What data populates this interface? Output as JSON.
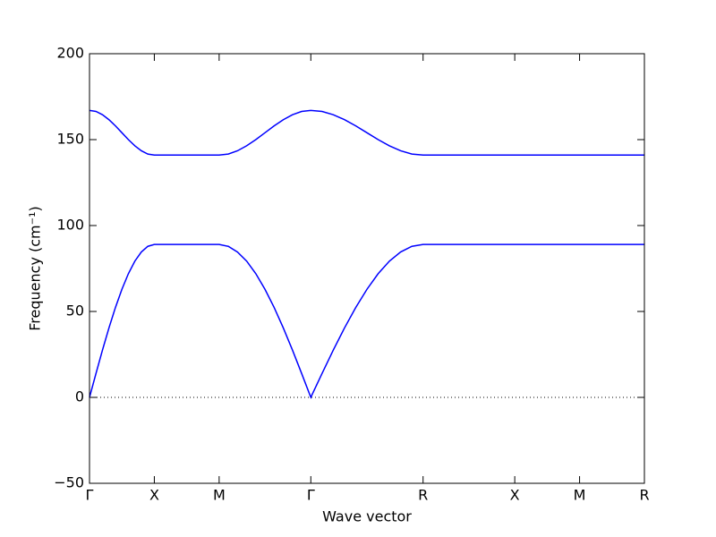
{
  "chart_data": {
    "type": "line",
    "xlabel": "Wave vector",
    "ylabel": "Frequency (cm⁻¹)",
    "x": [
      0,
      0.05,
      0.1,
      0.15,
      0.2,
      0.25,
      0.3,
      0.35,
      0.4,
      0.45,
      0.5,
      0.75,
      1.0,
      1.0707,
      1.1414,
      1.2121,
      1.2828,
      1.3536,
      1.4243,
      1.495,
      1.5657,
      1.6364,
      1.7071,
      1.7937,
      1.8803,
      1.9669,
      2.0535,
      2.1401,
      2.2267,
      2.3133,
      2.3999,
      2.4865,
      2.5731,
      3.2802,
      3.7802,
      4.2802
    ],
    "series": [
      {
        "color": "#0000ff",
        "values": [
          0,
          13.9,
          27.5,
          40.4,
          52.3,
          62.9,
          72.0,
          79.3,
          84.6,
          87.9,
          89,
          89,
          89,
          87.9,
          84.6,
          79.3,
          72.0,
          62.9,
          52.3,
          40.4,
          27.5,
          13.9,
          0,
          13.9,
          27.5,
          40.4,
          52.3,
          62.9,
          72.0,
          79.3,
          84.6,
          87.9,
          89,
          89,
          89,
          89
        ]
      },
      {
        "color": "#0000ff",
        "values": [
          167,
          166.4,
          164.5,
          161.6,
          158.0,
          154,
          150.0,
          146.4,
          143.5,
          141.6,
          141,
          141,
          141,
          141.6,
          143.5,
          146.4,
          150.0,
          154,
          158.0,
          161.6,
          164.5,
          166.4,
          167,
          166.4,
          164.5,
          161.6,
          158.0,
          154,
          150.0,
          146.4,
          143.5,
          141.6,
          141,
          141,
          141,
          141
        ]
      }
    ],
    "xlim": [
      0,
      4.2802
    ],
    "xticks": [
      {
        "value": 0,
        "label": "Γ"
      },
      {
        "value": 0.5,
        "label": "X"
      },
      {
        "value": 1.0,
        "label": "M"
      },
      {
        "value": 1.7071,
        "label": "Γ"
      },
      {
        "value": 2.5731,
        "label": "R"
      },
      {
        "value": 3.2802,
        "label": "X"
      },
      {
        "value": 3.7802,
        "label": "M"
      },
      {
        "value": 4.2802,
        "label": "R"
      }
    ],
    "ylim": [
      -50,
      200
    ],
    "yticks": [
      {
        "value": -50,
        "label": "−50"
      },
      0,
      50,
      100,
      150,
      200
    ],
    "hlines": [
      0
    ]
  }
}
